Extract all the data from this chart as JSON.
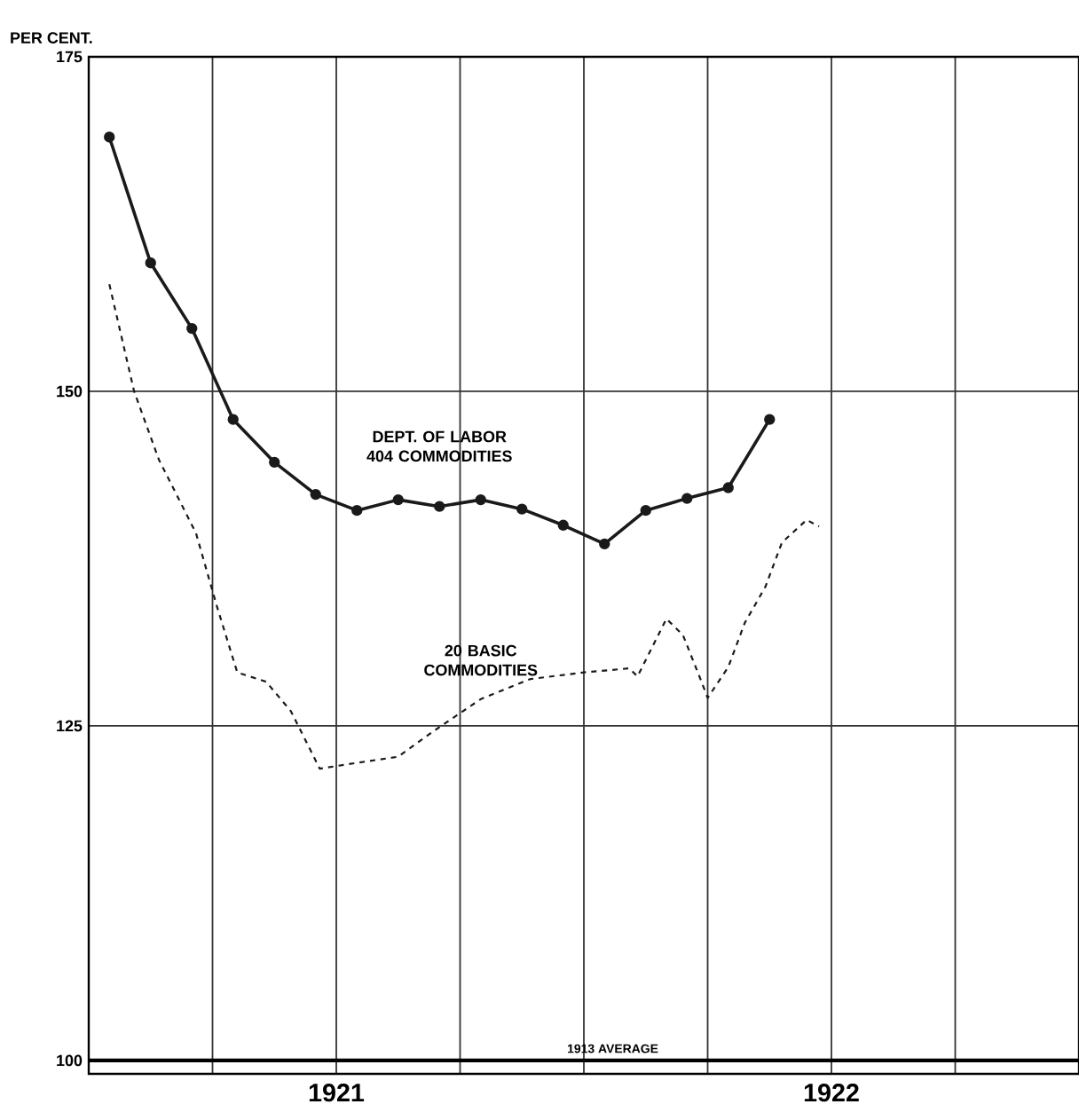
{
  "chart_data": {
    "type": "line",
    "ylabel": "PER CENT.",
    "xlim": [
      "1920-07",
      "1922-07"
    ],
    "ylim": [
      99,
      175
    ],
    "xticks": [
      {
        "value": "1920-07",
        "label": null
      },
      {
        "value": "1920-10",
        "label": null
      },
      "1921",
      {
        "value": "1921-04",
        "label": null
      },
      {
        "value": "1921-07",
        "label": null
      },
      {
        "value": "1921-10",
        "label": null
      },
      "1922",
      {
        "value": "1922-04",
        "label": null
      },
      {
        "value": "1922-07",
        "label": null
      }
    ],
    "yticks": [
      100,
      125,
      150,
      175
    ],
    "grid": true,
    "ref_lines": [
      {
        "axis": "y",
        "value": 100,
        "label": "1913 AVERAGE"
      }
    ],
    "series": [
      {
        "name": "DEPT. OF LABOR 404 COMMODITIES",
        "color": "#1a1a1a",
        "marker": "circle",
        "line_style": "solid",
        "x": [
          "1920-07-16",
          "1920-08-16",
          "1920-09-16",
          "1920-10-16",
          "1920-11-16",
          "1920-12-16",
          "1921-01-16",
          "1921-02-16",
          "1921-03-16",
          "1921-04-16",
          "1921-05-16",
          "1921-06-16",
          "1921-07-16",
          "1921-08-16",
          "1921-09-16",
          "1921-10-16",
          "1921-11-16"
        ],
        "values": [
          169,
          159.6,
          154.7,
          147.9,
          144.7,
          142.3,
          141.1,
          141.9,
          141.4,
          141.9,
          141.2,
          140,
          138.6,
          141.1,
          142,
          142.8,
          147.9
        ]
      },
      {
        "name": "20 BASIC COMMODITIES",
        "color": "#1a1a1a",
        "marker": "none",
        "line_style": "dashed",
        "x": [
          "1920-07-16",
          "1920-08-03",
          "1920-08-23",
          "1920-09-18",
          "1920-10-05",
          "1920-10-18",
          "1920-11-10",
          "1920-11-29",
          "1920-12-20",
          "1921-01-08",
          "1921-02-17",
          "1921-03-13",
          "1921-04-15",
          "1921-05-23",
          "1921-07-02",
          "1921-08-05",
          "1921-08-11",
          "1921-08-30",
          "1921-09-13",
          "1921-09-26",
          "1921-10-02",
          "1921-10-15",
          "1921-10-28",
          "1921-11-14",
          "1921-11-24",
          "1921-12-14",
          "1921-12-23"
        ],
        "values": [
          158,
          150,
          144.9,
          139.4,
          134,
          129,
          128.3,
          126.1,
          121.8,
          122.1,
          122.7,
          124.7,
          127,
          128.5,
          129,
          129.3,
          128.7,
          133,
          131.8,
          128.7,
          127.1,
          129.4,
          132.7,
          135.4,
          138.7,
          140.4,
          139.9
        ]
      }
    ]
  }
}
